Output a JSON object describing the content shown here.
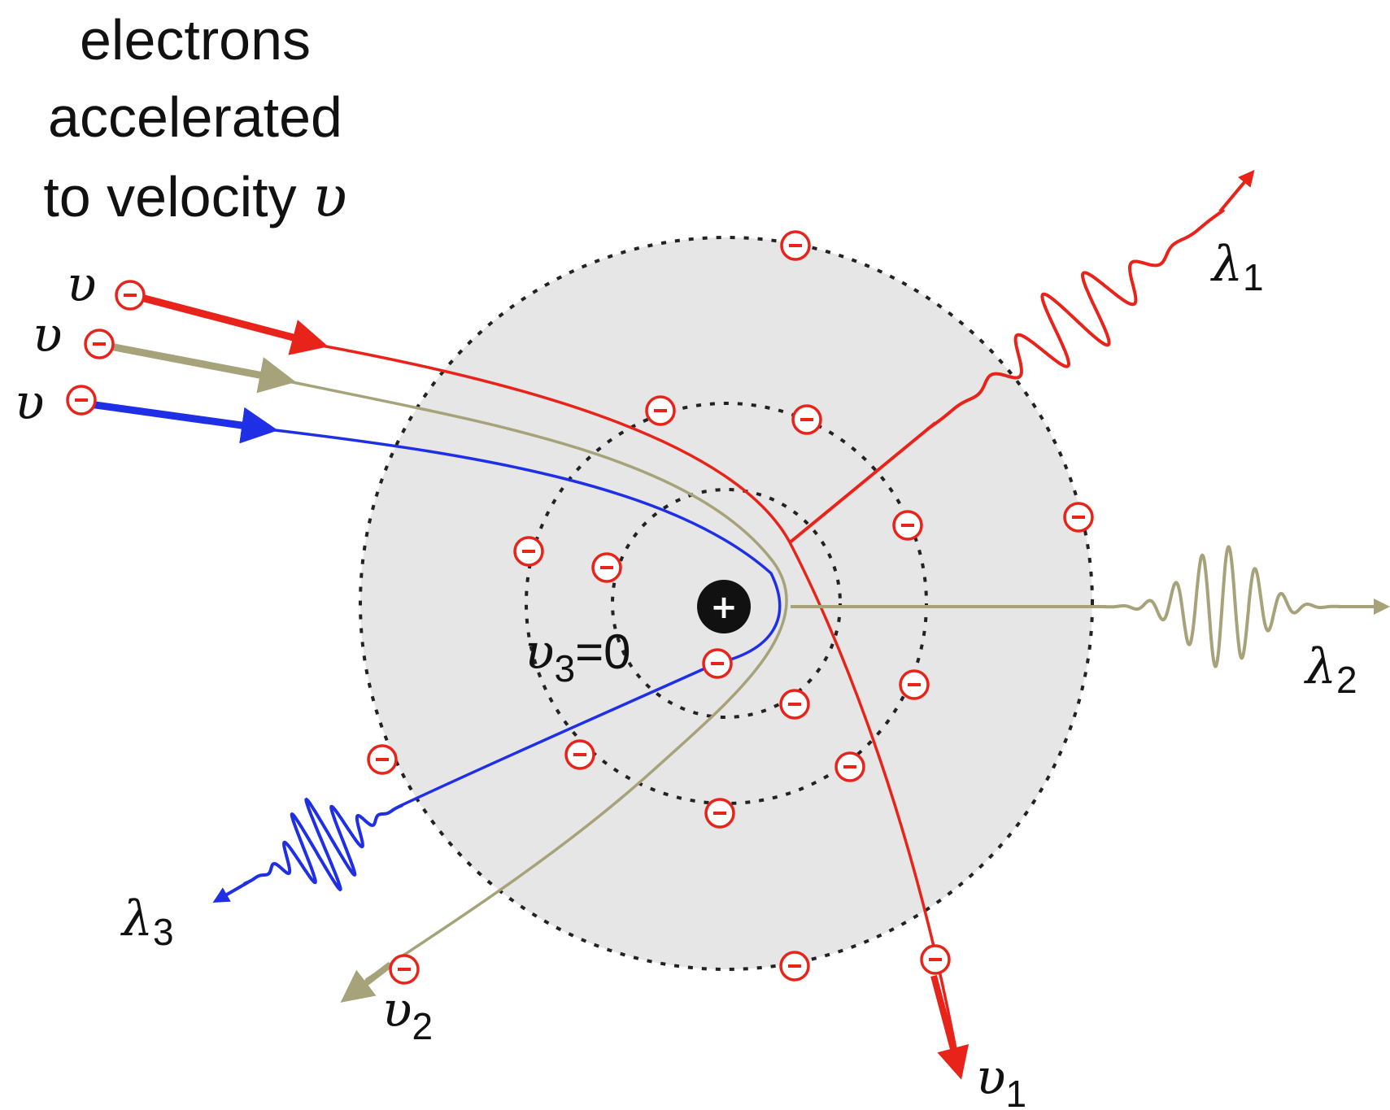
{
  "caption": {
    "line1": "electrons",
    "line2": "accelerated",
    "line3": "to velocity "
  },
  "symbols": {
    "velocity": "υ",
    "wavelength": "λ",
    "equals_zero": "=0"
  },
  "subscripts": {
    "one": "1",
    "two": "2",
    "three": "3"
  },
  "particle_signs": {
    "electron": "−",
    "nucleus": "+"
  },
  "colors": {
    "path_1": "#e8231a",
    "path_2": "#a6a27a",
    "path_3": "#1f2fe6",
    "electron_ring": "#e8231a",
    "atom_fill": "#e6e6e6",
    "shell_stroke": "#222222",
    "nucleus": "#111111"
  }
}
